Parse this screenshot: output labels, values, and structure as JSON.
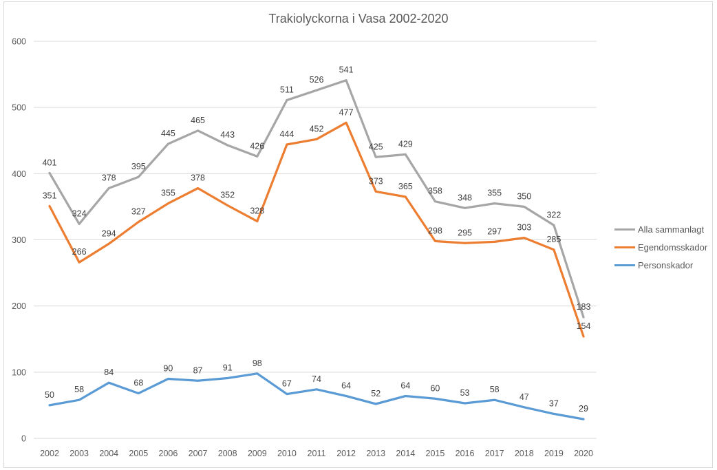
{
  "chart_data": {
    "type": "line",
    "title": "Trakiolyckorna i Vasa 2002-2020",
    "categories": [
      "2002",
      "2003",
      "2004",
      "2005",
      "2006",
      "2007",
      "2008",
      "2009",
      "2010",
      "2011",
      "2012",
      "2013",
      "2014",
      "2015",
      "2016",
      "2017",
      "2018",
      "2019",
      "2020"
    ],
    "series": [
      {
        "name": "Alla sammanlagt",
        "color": "#a6a6a6",
        "values": [
          401,
          324,
          378,
          395,
          445,
          465,
          443,
          426,
          511,
          526,
          541,
          425,
          429,
          358,
          348,
          355,
          350,
          322,
          183
        ]
      },
      {
        "name": "Egendomsskador",
        "color": "#ed7d31",
        "values": [
          351,
          266,
          294,
          327,
          355,
          378,
          352,
          328,
          444,
          452,
          477,
          373,
          365,
          298,
          295,
          297,
          303,
          285,
          154
        ]
      },
      {
        "name": "Personskador",
        "color": "#5b9bd5",
        "values": [
          50,
          58,
          84,
          68,
          90,
          87,
          91,
          98,
          67,
          74,
          64,
          52,
          64,
          60,
          53,
          58,
          47,
          37,
          29
        ]
      }
    ],
    "xlabel": "",
    "ylabel": "",
    "ylim": [
      0,
      600
    ],
    "yticks": [
      0,
      100,
      200,
      300,
      400,
      500,
      600
    ],
    "grid": true,
    "data_labels": true,
    "legend_position": "right"
  },
  "styles": {
    "gridline_color": "#d9d9d9",
    "frame_border_color": "#d9d9d9",
    "axis_label_color": "#595959",
    "data_label_color": "#404040",
    "title_color": "#595959"
  }
}
